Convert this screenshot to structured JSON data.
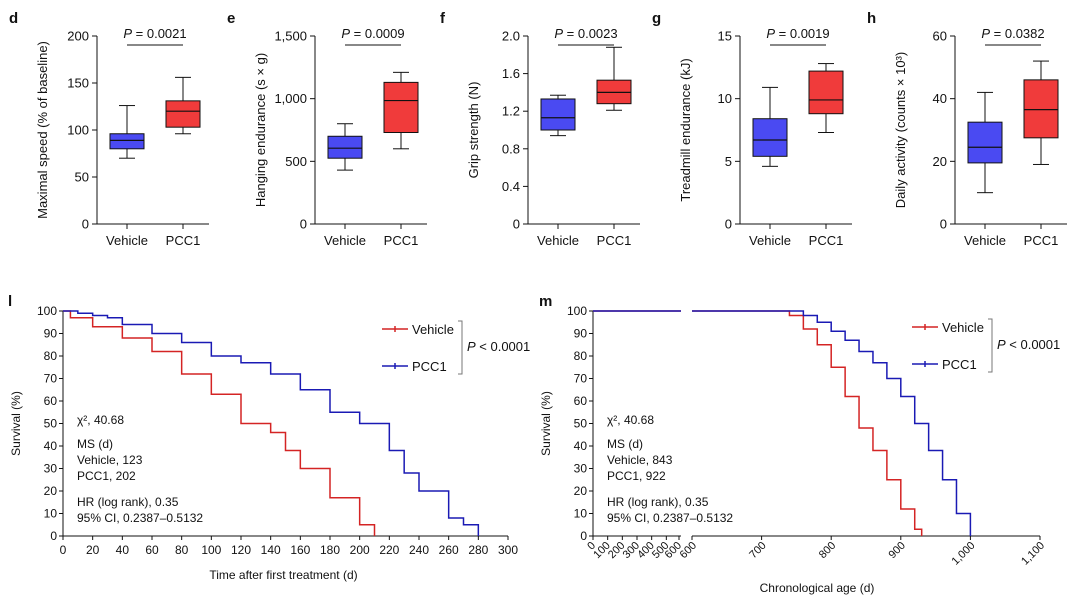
{
  "colors": {
    "vehicle": "#4a4af2",
    "pcc1": "#f03b3b",
    "vehicle_line": "#d42424",
    "pcc1_line": "#1a1ab4",
    "axis": "#111111"
  },
  "box_panels": [
    {
      "letter": "d",
      "ylabel": "Maximal speed (% of baseline)",
      "yticks": [
        0,
        50,
        100,
        150,
        200
      ],
      "ytick_labels": [
        "0",
        "50",
        "100",
        "150",
        "200"
      ],
      "ylim": [
        0,
        200
      ],
      "p_label": "P = 0.0021",
      "categories": [
        "Vehicle",
        "PCC1"
      ],
      "boxes": [
        {
          "name": "Vehicle",
          "min": 70,
          "q1": 80,
          "median": 89,
          "q3": 96,
          "max": 126
        },
        {
          "name": "PCC1",
          "min": 96,
          "q1": 103,
          "median": 120,
          "q3": 131,
          "max": 156
        }
      ]
    },
    {
      "letter": "e",
      "ylabel": "Hanging endurance (s × g)",
      "yticks": [
        0,
        500,
        1000,
        1500
      ],
      "ytick_labels": [
        "0",
        "500",
        "1,000",
        "1,500"
      ],
      "ylim": [
        0,
        1500
      ],
      "p_label": "P = 0.0009",
      "categories": [
        "Vehicle",
        "PCC1"
      ],
      "boxes": [
        {
          "name": "Vehicle",
          "min": 430,
          "q1": 525,
          "median": 605,
          "q3": 700,
          "max": 800
        },
        {
          "name": "PCC1",
          "min": 600,
          "q1": 730,
          "median": 985,
          "q3": 1130,
          "max": 1210
        }
      ]
    },
    {
      "letter": "f",
      "ylabel": "Grip strength (N)",
      "yticks": [
        0,
        0.4,
        0.8,
        1.2,
        1.6,
        2.0
      ],
      "ytick_labels": [
        "0",
        "0.4",
        "0.8",
        "1.2",
        "1.6",
        "2.0"
      ],
      "ylim": [
        0,
        2.0
      ],
      "p_label": "P = 0.0023",
      "categories": [
        "Vehicle",
        "PCC1"
      ],
      "boxes": [
        {
          "name": "Vehicle",
          "min": 0.94,
          "q1": 1.0,
          "median": 1.13,
          "q3": 1.33,
          "max": 1.37
        },
        {
          "name": "PCC1",
          "min": 1.21,
          "q1": 1.28,
          "median": 1.4,
          "q3": 1.53,
          "max": 1.88
        }
      ]
    },
    {
      "letter": "g",
      "ylabel": "Treadmill endurance (kJ)",
      "yticks": [
        0,
        5,
        10,
        15
      ],
      "ytick_labels": [
        "0",
        "5",
        "10",
        "15"
      ],
      "ylim": [
        0,
        15
      ],
      "p_label": "P = 0.0019",
      "categories": [
        "Vehicle",
        "PCC1"
      ],
      "boxes": [
        {
          "name": "Vehicle",
          "min": 4.6,
          "q1": 5.4,
          "median": 6.7,
          "q3": 8.4,
          "max": 10.9
        },
        {
          "name": "PCC1",
          "min": 7.3,
          "q1": 8.8,
          "median": 9.9,
          "q3": 12.2,
          "max": 12.8
        }
      ]
    },
    {
      "letter": "h",
      "ylabel": "Daily activity (counts × 10³)",
      "yticks": [
        0,
        20,
        40,
        60
      ],
      "ytick_labels": [
        "0",
        "20",
        "40",
        "60"
      ],
      "ylim": [
        0,
        60
      ],
      "p_label": "P = 0.0382",
      "categories": [
        "Vehicle",
        "PCC1"
      ],
      "boxes": [
        {
          "name": "Vehicle",
          "min": 10,
          "q1": 19.5,
          "median": 24.5,
          "q3": 32.5,
          "max": 42
        },
        {
          "name": "PCC1",
          "min": 19,
          "q1": 27.5,
          "median": 36.5,
          "q3": 46,
          "max": 52
        }
      ]
    }
  ],
  "chart_data": [
    {
      "type": "line",
      "panel": "l",
      "title": "",
      "xlabel": "Time after first treatment (d)",
      "ylabel": "Survival (%)",
      "xlim": [
        0,
        300
      ],
      "ylim": [
        0,
        100
      ],
      "xticks": [
        0,
        20,
        40,
        60,
        80,
        100,
        120,
        140,
        160,
        180,
        200,
        220,
        240,
        260,
        280,
        300
      ],
      "yticks": [
        0,
        10,
        20,
        30,
        40,
        50,
        60,
        70,
        80,
        90,
        100
      ],
      "series": [
        {
          "name": "Vehicle",
          "x": [
            0,
            5,
            20,
            40,
            60,
            80,
            100,
            120,
            140,
            150,
            160,
            180,
            200,
            210
          ],
          "y": [
            100,
            97,
            93,
            88,
            82,
            72,
            63,
            50,
            46,
            38,
            30,
            17,
            5,
            0
          ]
        },
        {
          "name": "PCC1",
          "x": [
            0,
            10,
            20,
            30,
            40,
            60,
            80,
            100,
            120,
            140,
            160,
            180,
            200,
            220,
            230,
            240,
            260,
            270,
            280
          ],
          "y": [
            100,
            99,
            98,
            97,
            94,
            90,
            86,
            80,
            77,
            72,
            65,
            55,
            50,
            38,
            28,
            20,
            8,
            5,
            0
          ]
        }
      ],
      "p_label": "P < 0.0001",
      "stats": [
        "χ², 40.68",
        "MS (d)",
        "Vehicle, 123",
        "PCC1, 202",
        "HR (log rank), 0.35",
        "95% CI, 0.2387–0.5132"
      ]
    },
    {
      "type": "line",
      "panel": "m",
      "title": "",
      "xlabel": "Chronological age (d)",
      "ylabel": "Survival (%)",
      "xlim": [
        0,
        1100
      ],
      "ylim": [
        0,
        100
      ],
      "xticks_left": [
        0,
        100,
        200,
        300,
        400,
        500,
        600
      ],
      "xticks_right": [
        600,
        700,
        800,
        900,
        1000,
        1100
      ],
      "xtick_labels_right": [
        "600",
        "700",
        "800",
        "900",
        "1,000",
        "1,100"
      ],
      "yticks": [
        0,
        10,
        20,
        30,
        40,
        50,
        60,
        70,
        80,
        90,
        100
      ],
      "series": [
        {
          "name": "Vehicle",
          "x": [
            0,
            600,
            720,
            740,
            760,
            780,
            800,
            820,
            840,
            860,
            880,
            900,
            920,
            930
          ],
          "y": [
            100,
            100,
            100,
            98,
            92,
            85,
            75,
            62,
            48,
            38,
            25,
            12,
            3,
            0
          ]
        },
        {
          "name": "PCC1",
          "x": [
            0,
            600,
            730,
            760,
            780,
            800,
            820,
            840,
            860,
            880,
            900,
            920,
            940,
            960,
            980,
            1000
          ],
          "y": [
            100,
            100,
            100,
            98,
            95,
            91,
            87,
            82,
            77,
            70,
            62,
            50,
            38,
            25,
            10,
            0
          ]
        }
      ],
      "p_label": "P < 0.0001",
      "stats": [
        "χ², 40.68",
        "MS (d)",
        "Vehicle, 843",
        "PCC1, 922",
        "HR (log rank), 0.35",
        "95% CI, 0.2387–0.5132"
      ]
    }
  ]
}
